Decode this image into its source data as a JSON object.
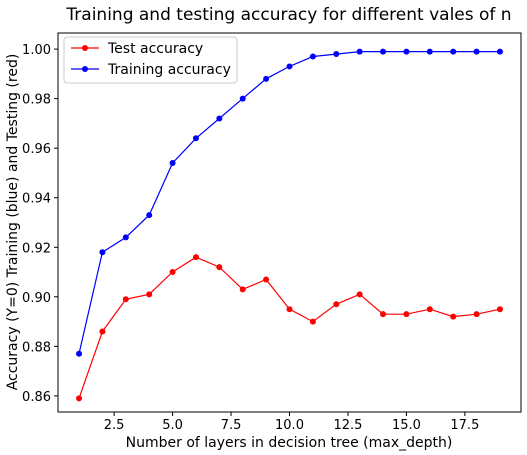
{
  "chart_data": {
    "type": "line",
    "title": "Training and testing accuracy for different vales of n",
    "xlabel": "Number of layers in decision tree (max_depth)",
    "ylabel": "Accuracy (Y=0) Training (blue) and Testing (red)",
    "x": [
      1,
      2,
      3,
      4,
      5,
      6,
      7,
      8,
      9,
      10,
      11,
      12,
      13,
      14,
      15,
      16,
      17,
      18,
      19
    ],
    "xlim": [
      0.1,
      19.9
    ],
    "ylim": [
      0.8535,
      1.0065
    ],
    "xticks": [
      "2.5",
      "5.0",
      "7.5",
      "10.0",
      "12.5",
      "15.0",
      "17.5"
    ],
    "yticks": [
      "0.86",
      "0.88",
      "0.90",
      "0.92",
      "0.94",
      "0.96",
      "0.98",
      "1.00"
    ],
    "grid": false,
    "legend_position": "top-left",
    "series": [
      {
        "name": "Test accuracy",
        "color": "#ff0000",
        "values": [
          0.859,
          0.886,
          0.899,
          0.901,
          0.91,
          0.916,
          0.912,
          0.903,
          0.907,
          0.895,
          0.89,
          0.897,
          0.901,
          0.893,
          0.893,
          0.895,
          0.892,
          0.893,
          0.895
        ]
      },
      {
        "name": "Training accuracy",
        "color": "#0000ff",
        "values": [
          0.877,
          0.918,
          0.924,
          0.933,
          0.954,
          0.964,
          0.972,
          0.98,
          0.988,
          0.993,
          0.997,
          0.998,
          0.999,
          0.999,
          0.999,
          0.999,
          0.999,
          0.999,
          0.999
        ]
      }
    ]
  }
}
